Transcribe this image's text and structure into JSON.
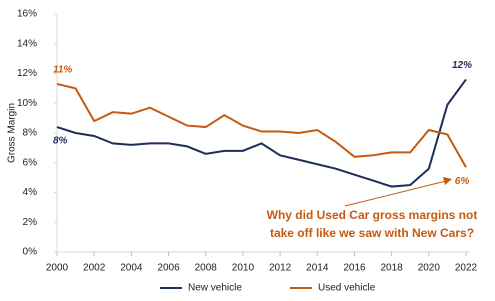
{
  "chart_data": {
    "type": "line",
    "y_label": "Gross Margin",
    "x": [
      2000,
      2001,
      2002,
      2003,
      2004,
      2005,
      2006,
      2007,
      2008,
      2009,
      2010,
      2011,
      2012,
      2013,
      2014,
      2015,
      2016,
      2017,
      2018,
      2019,
      2020,
      2021,
      2022
    ],
    "xlim": [
      2000,
      2022
    ],
    "xticks": [
      2000,
      2002,
      2004,
      2006,
      2008,
      2010,
      2012,
      2014,
      2016,
      2018,
      2020,
      2022
    ],
    "ylim": [
      0,
      16
    ],
    "yticks": [
      {
        "value": 0,
        "label": "0%"
      },
      {
        "value": 2,
        "label": "2%"
      },
      {
        "value": 4,
        "label": "4%"
      },
      {
        "value": 6,
        "label": "6%"
      },
      {
        "value": 8,
        "label": "8%"
      },
      {
        "value": 10,
        "label": "10%"
      },
      {
        "value": 12,
        "label": "12%"
      },
      {
        "value": 14,
        "label": "14%"
      },
      {
        "value": 16,
        "label": "16%"
      }
    ],
    "grid": false,
    "legend": "bottom",
    "series": [
      {
        "name": "New vehicle",
        "color": "#1f2d5a",
        "values": [
          8.4,
          8.0,
          7.8,
          7.3,
          7.2,
          7.3,
          7.3,
          7.1,
          6.6,
          6.8,
          6.8,
          7.3,
          6.5,
          6.2,
          5.9,
          5.6,
          5.2,
          4.8,
          4.4,
          4.5,
          5.6,
          9.9,
          11.6
        ],
        "value_labels": [
          "8%",
          null,
          null,
          null,
          null,
          null,
          null,
          null,
          null,
          null,
          null,
          null,
          null,
          null,
          null,
          null,
          null,
          null,
          null,
          null,
          null,
          null,
          "12%"
        ]
      },
      {
        "name": "Used vehicle",
        "color": "#c55a11",
        "values": [
          11.3,
          11.0,
          8.8,
          9.4,
          9.3,
          9.7,
          9.1,
          8.5,
          8.4,
          9.2,
          8.5,
          8.1,
          8.1,
          8.0,
          8.2,
          7.4,
          6.4,
          6.5,
          6.7,
          6.7,
          8.2,
          7.9,
          5.7
        ],
        "value_labels": [
          "11%",
          null,
          null,
          null,
          null,
          null,
          null,
          null,
          null,
          null,
          null,
          null,
          null,
          null,
          null,
          null,
          null,
          null,
          null,
          null,
          null,
          null,
          "6%"
        ]
      }
    ],
    "annotation": [
      "Why did Used Car gross margins not",
      "take off like we saw with New Cars?"
    ],
    "annotation_color": "#c55a11"
  }
}
